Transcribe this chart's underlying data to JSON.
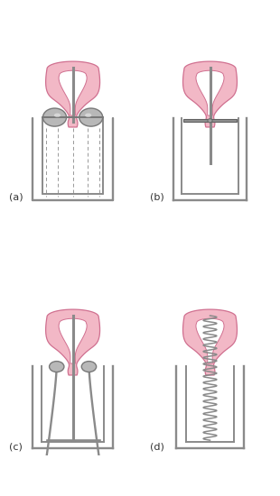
{
  "bg_color": "#ffffff",
  "uterus_fill": "#f2b8c6",
  "uterus_edge": "#d07090",
  "cavity_fill": "#ffffff",
  "tube_color": "#8a8a8a",
  "tube_lw": 1.4,
  "ovoid_fill": "#b8b8b8",
  "ovoid_edge": "#787878",
  "label_color": "#333333",
  "dashed_color": "#999999",
  "label_fontsize": 8,
  "panel_labels": [
    "(a)",
    "(b)",
    "(c)",
    "(d)"
  ]
}
